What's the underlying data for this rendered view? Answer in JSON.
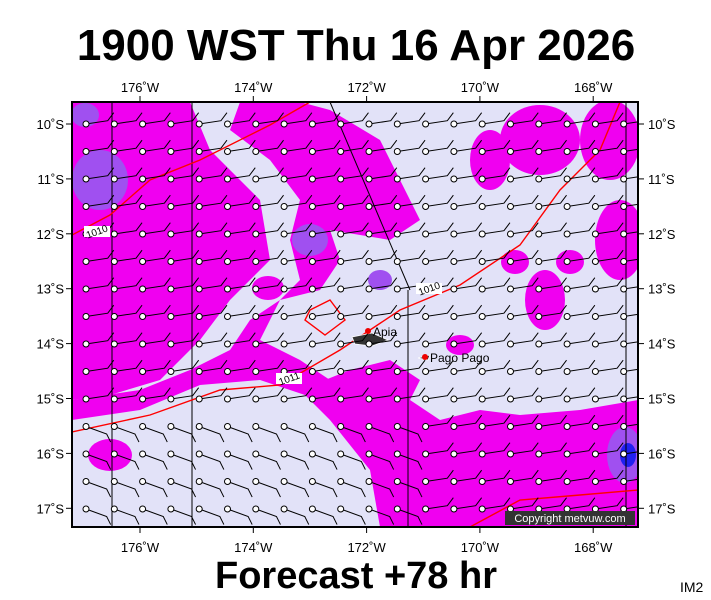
{
  "title": "1900 WST Thu 16 Apr 2026",
  "footer": "Forecast +78 hr",
  "corner": "IM2",
  "copyright": "Copyright metvuw.com",
  "longitude_labels": [
    "176˚W",
    "174˚W",
    "172˚W",
    "170˚W",
    "168˚W"
  ],
  "latitude_labels": [
    "10˚S",
    "11˚S",
    "12˚S",
    "13˚S",
    "14˚S",
    "15˚S",
    "16˚S",
    "17˚S"
  ],
  "places": [
    "Apia",
    "Pago Pago"
  ],
  "isobar_labels": [
    "1010",
    "1010",
    "1011"
  ]
}
